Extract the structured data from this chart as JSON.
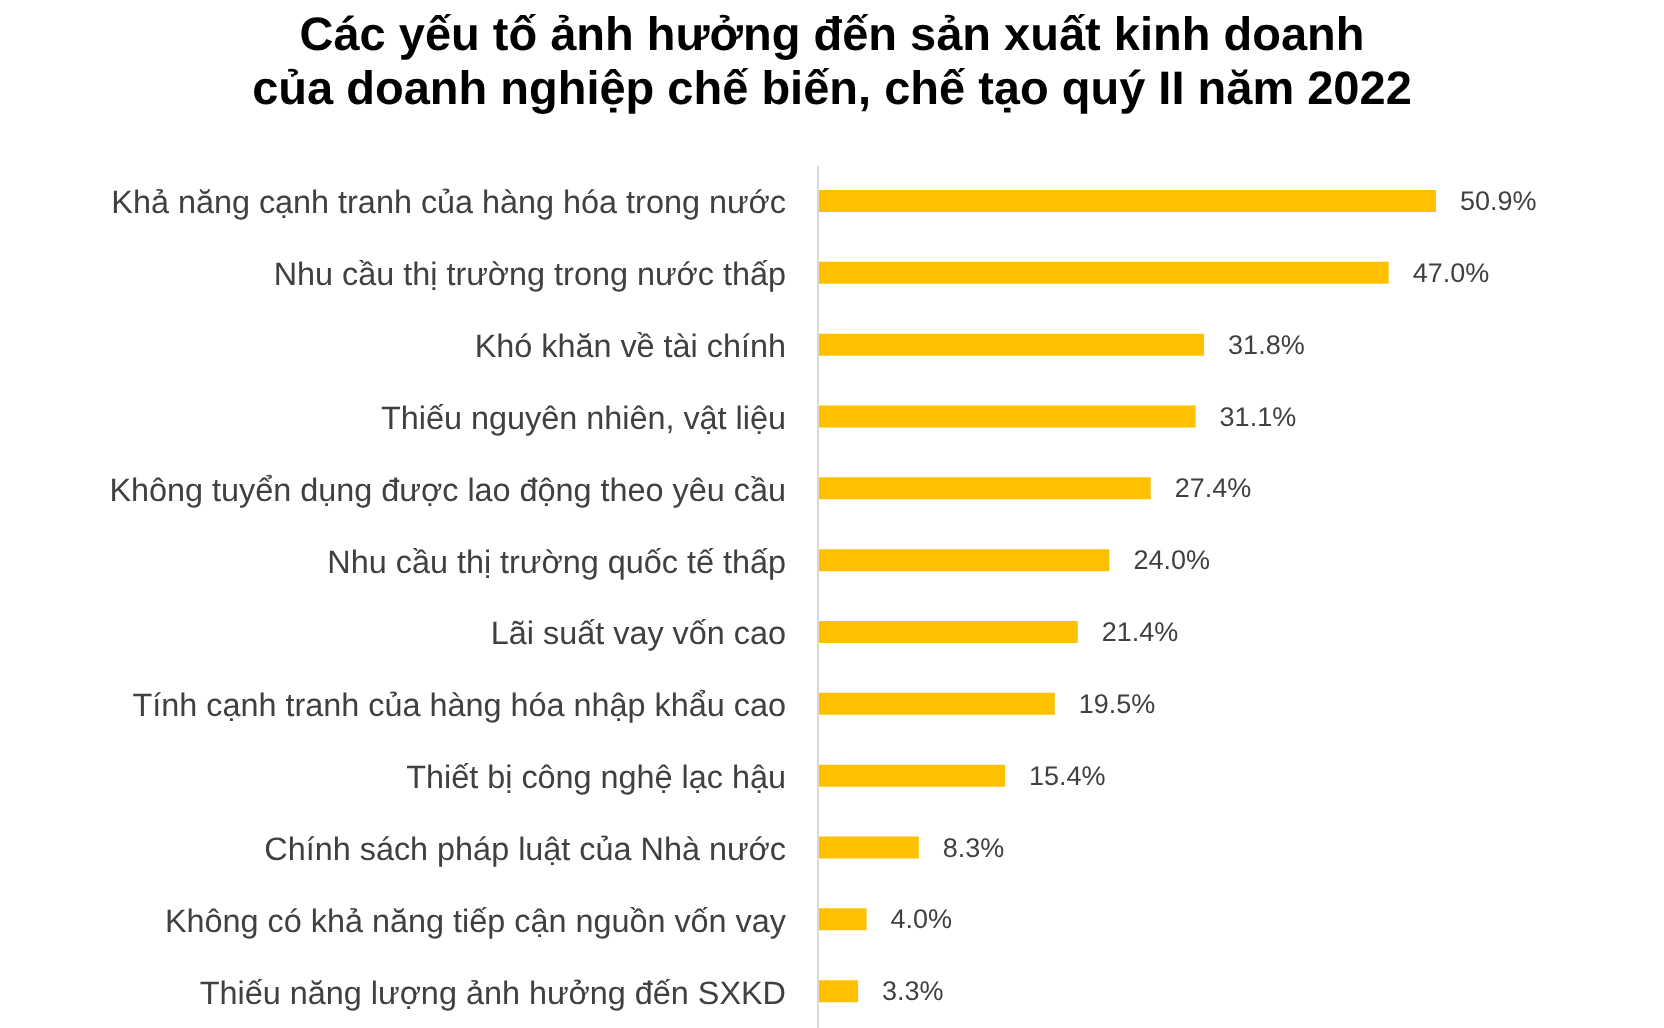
{
  "chart_data": {
    "type": "bar",
    "orientation": "horizontal",
    "title": "Các yếu tố ảnh hưởng đến sản xuất kinh doanh\ncủa doanh nghiệp chế biến, chế tạo quý II năm 2022",
    "categories": [
      "Khả năng cạnh tranh của hàng hóa trong nước",
      "Nhu cầu thị trường trong nước thấp",
      "Khó khăn về tài chính",
      "Thiếu nguyên nhiên, vật liệu",
      "Không tuyển dụng được lao động theo yêu cầu",
      "Nhu cầu thị trường quốc tế thấp",
      "Lãi suất vay vốn cao",
      "Tính cạnh tranh của hàng hóa nhập khẩu cao",
      "Thiết bị công nghệ lạc hậu",
      "Chính sách pháp luật của Nhà nước",
      "Không có khả năng tiếp cận nguồn vốn vay",
      "Thiếu năng lượng ảnh hưởng đến SXKD"
    ],
    "values": [
      50.9,
      47.0,
      31.8,
      31.1,
      27.4,
      24.0,
      21.4,
      19.5,
      15.4,
      8.3,
      4.0,
      3.3
    ],
    "value_labels": [
      "50.9%",
      "47.0%",
      "31.8%",
      "31.1%",
      "27.4%",
      "24.0%",
      "21.4%",
      "19.5%",
      "15.4%",
      "8.3%",
      "4.0%",
      "3.3%"
    ],
    "color": "#ffc000",
    "tick_labels": "y"
  }
}
